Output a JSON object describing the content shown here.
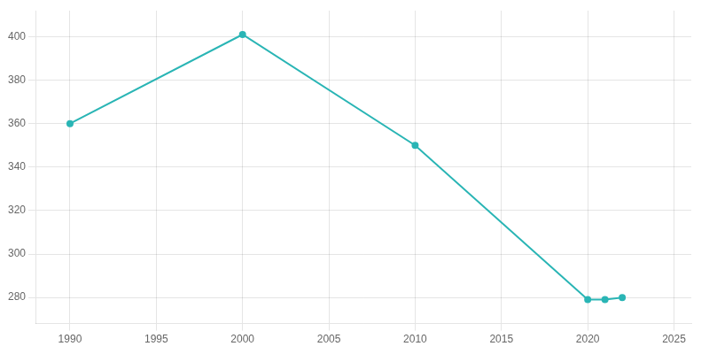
{
  "chart_data": {
    "type": "line",
    "x": [
      1990,
      2000,
      2010,
      2020,
      2021,
      2022
    ],
    "values": [
      360,
      401,
      350,
      279,
      279,
      280
    ],
    "color": "#2ab5b5",
    "marker": "circle",
    "xlim": [
      1988,
      2026
    ],
    "xticks": [
      1990,
      1995,
      2000,
      2005,
      2010,
      2015,
      2020,
      2025
    ],
    "ylim": [
      268,
      412
    ],
    "yticks": [
      280,
      300,
      320,
      340,
      360,
      380,
      400
    ],
    "grid": true
  }
}
